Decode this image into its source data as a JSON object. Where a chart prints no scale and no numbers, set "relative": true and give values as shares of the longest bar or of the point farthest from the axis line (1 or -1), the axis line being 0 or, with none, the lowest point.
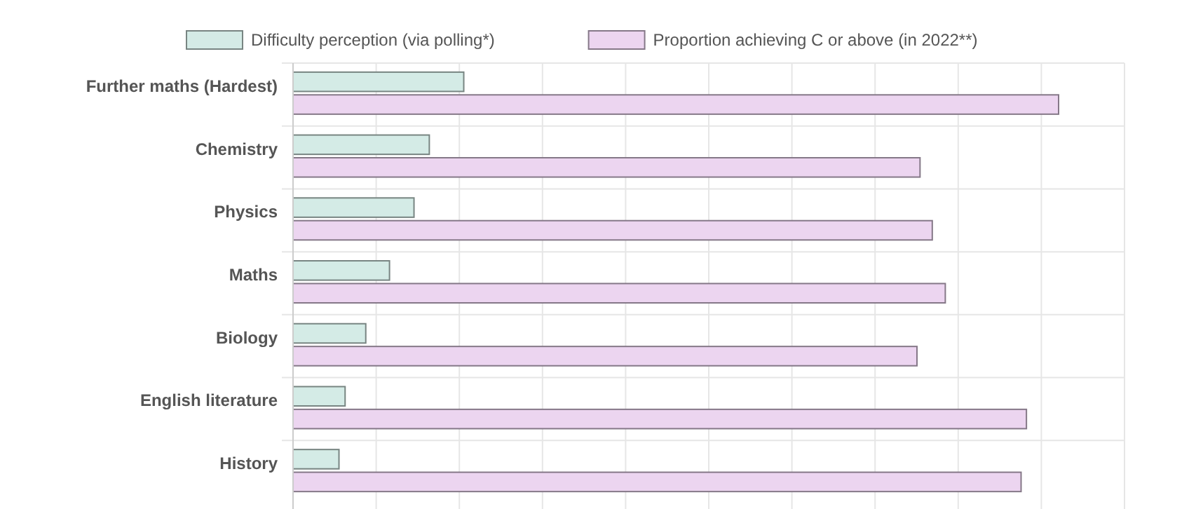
{
  "chart_data": {
    "type": "bar",
    "orientation": "horizontal",
    "relative": true,
    "grid": true,
    "legend": "top",
    "categories": [
      "Further maths (Hardest)",
      "Chemistry",
      "Physics",
      "Maths",
      "Biology",
      "English literature",
      "History"
    ],
    "series": [
      {
        "name": "Difficulty perception (via polling*)",
        "color": "#d4ebe6",
        "values": [
          0.223,
          0.178,
          0.158,
          0.126,
          0.095,
          0.068,
          0.06
        ]
      },
      {
        "name": "Proportion achieving C or above (in 2022**)",
        "color": "#ecd5f0",
        "values": [
          1,
          0.819,
          0.835,
          0.852,
          0.815,
          0.958,
          0.951
        ]
      }
    ]
  }
}
